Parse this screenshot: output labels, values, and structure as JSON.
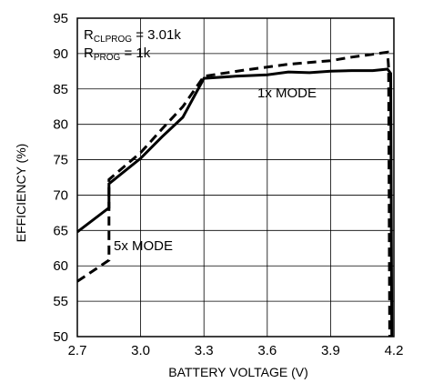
{
  "chart_data": {
    "type": "line",
    "xlabel": "BATTERY VOLTAGE (V)",
    "ylabel": "EFFICIENCY (%)",
    "xlim": [
      2.7,
      4.2
    ],
    "ylim": [
      50,
      95
    ],
    "xticks": [
      2.7,
      3.0,
      3.3,
      3.6,
      3.9,
      4.2
    ],
    "xtick_labels": [
      "2.7",
      "3.0",
      "3.3",
      "3.6",
      "3.9",
      "4.2"
    ],
    "yticks": [
      50,
      55,
      60,
      65,
      70,
      75,
      80,
      85,
      90,
      95
    ],
    "ytick_labels": [
      "50",
      "55",
      "60",
      "65",
      "70",
      "75",
      "80",
      "85",
      "90",
      "95"
    ],
    "grid": true,
    "annotations": {
      "rclprog": {
        "main": "R",
        "sub": "CLPROG",
        "rest": " = 3.01k"
      },
      "rprog": {
        "main": "R",
        "sub": "PROG",
        "rest": " = 1k"
      },
      "mode_1x": "1x MODE",
      "mode_5x": "5x MODE"
    },
    "series": [
      {
        "style": "solid",
        "points": [
          [
            2.7,
            64.8
          ],
          [
            2.85,
            68.2
          ],
          [
            2.85,
            71.6
          ],
          [
            3.0,
            75.2
          ],
          [
            3.1,
            78.2
          ],
          [
            3.2,
            81.0
          ],
          [
            3.3,
            86.5
          ],
          [
            3.45,
            86.8
          ],
          [
            3.6,
            87.0
          ],
          [
            3.7,
            87.4
          ],
          [
            3.8,
            87.3
          ],
          [
            3.9,
            87.5
          ],
          [
            4.0,
            87.6
          ],
          [
            4.1,
            87.6
          ],
          [
            4.17,
            87.8
          ],
          [
            4.185,
            87.2
          ],
          [
            4.19,
            50.0
          ]
        ]
      },
      {
        "style": "dashed",
        "points": [
          [
            2.7,
            57.8
          ],
          [
            2.85,
            60.8
          ],
          [
            2.85,
            72.2
          ],
          [
            3.0,
            76.0
          ],
          [
            3.1,
            79.3
          ],
          [
            3.2,
            82.5
          ],
          [
            3.3,
            86.8
          ],
          [
            3.5,
            87.7
          ],
          [
            3.7,
            88.5
          ],
          [
            3.9,
            89.0
          ],
          [
            4.0,
            89.5
          ],
          [
            4.1,
            89.9
          ],
          [
            4.17,
            90.2
          ],
          [
            4.175,
            88.0
          ],
          [
            4.18,
            50.0
          ]
        ]
      }
    ]
  }
}
